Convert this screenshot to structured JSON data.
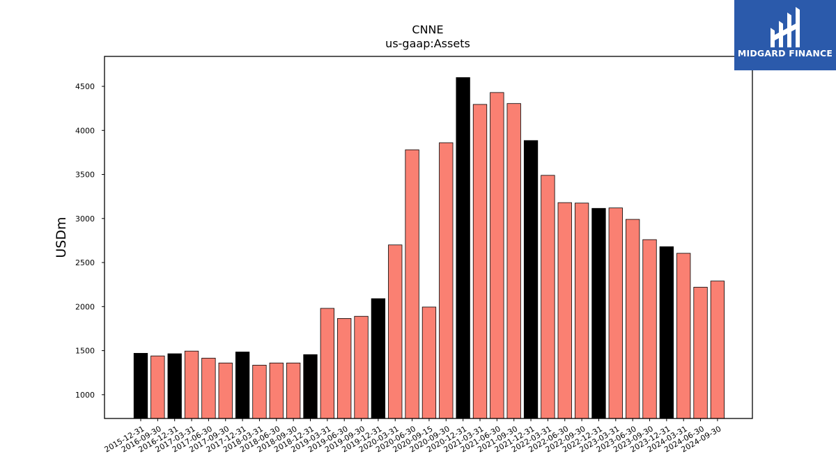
{
  "brand": {
    "name": "MIDGARD FINANCE",
    "logo_color": "#2b5aab"
  },
  "chart_data": {
    "type": "bar",
    "title": "CNNE",
    "subtitle": "us-gaap:Assets",
    "xlabel": "",
    "ylabel": "USDm",
    "ylim": [
      730,
      4840
    ],
    "yticks": [
      1000,
      1500,
      2000,
      2500,
      3000,
      3500,
      4000,
      4500
    ],
    "grid": false,
    "colors": {
      "highlight": "#000000",
      "default": "#fa8072"
    },
    "categories": [
      "2015-12-31",
      "2016-09-30",
      "2016-12-31",
      "2017-03-31",
      "2017-06-30",
      "2017-09-30",
      "2017-12-31",
      "2018-03-31",
      "2018-06-30",
      "2018-09-30",
      "2018-12-31",
      "2019-03-31",
      "2019-06-30",
      "2019-09-30",
      "2019-12-31",
      "2020-03-31",
      "2020-06-30",
      "2020-09-15",
      "2020-09-30",
      "2020-12-31",
      "2021-03-31",
      "2021-06-30",
      "2021-09-30",
      "2021-12-31",
      "2022-03-31",
      "2022-06-30",
      "2022-09-30",
      "2022-12-31",
      "2023-03-31",
      "2023-06-30",
      "2023-09-30",
      "2023-12-31",
      "2024-03-31",
      "2024-06-30",
      "2024-09-30"
    ],
    "values": [
      1470,
      1440,
      1465,
      1495,
      1415,
      1360,
      1485,
      1335,
      1360,
      1360,
      1455,
      1980,
      1865,
      1890,
      2090,
      2700,
      3780,
      1995,
      3860,
      4600,
      4295,
      4430,
      4305,
      3885,
      3490,
      3180,
      3175,
      3115,
      3120,
      2990,
      2760,
      2680,
      2605,
      2220,
      2290
    ],
    "highlight": [
      true,
      false,
      true,
      false,
      false,
      false,
      true,
      false,
      false,
      false,
      true,
      false,
      false,
      false,
      true,
      false,
      false,
      false,
      false,
      true,
      false,
      false,
      false,
      true,
      false,
      false,
      false,
      true,
      false,
      false,
      false,
      true,
      false,
      false,
      false
    ]
  }
}
